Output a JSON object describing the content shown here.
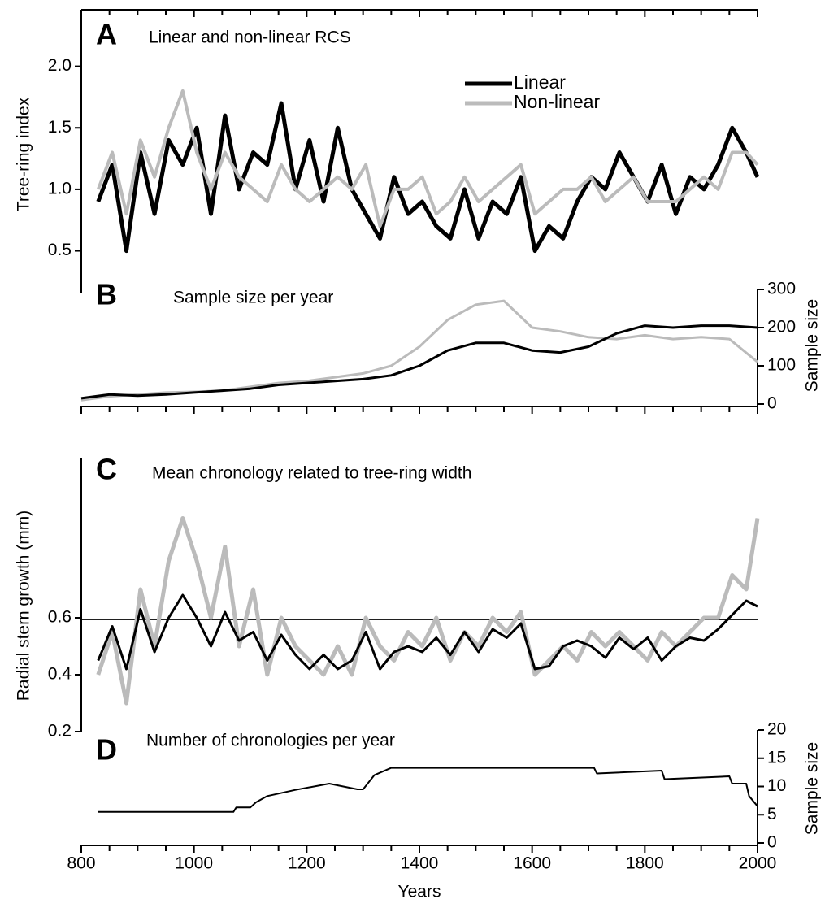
{
  "chart_data": [
    {
      "type": "line",
      "panel": "A",
      "title": "Linear and non-linear RCS",
      "ylabel": "Tree-ring index",
      "x": [
        830,
        855,
        880,
        905,
        930,
        955,
        980,
        1005,
        1030,
        1055,
        1080,
        1105,
        1130,
        1155,
        1180,
        1205,
        1230,
        1255,
        1280,
        1305,
        1330,
        1355,
        1380,
        1405,
        1430,
        1455,
        1480,
        1505,
        1530,
        1555,
        1580,
        1605,
        1630,
        1655,
        1680,
        1705,
        1730,
        1755,
        1780,
        1805,
        1830,
        1855,
        1880,
        1905,
        1930,
        1955,
        1980,
        2000
      ],
      "series": [
        {
          "name": "Linear",
          "color": "#000000",
          "values": [
            0.9,
            1.2,
            0.5,
            1.3,
            0.8,
            1.4,
            1.2,
            1.5,
            0.8,
            1.6,
            1.0,
            1.3,
            1.2,
            1.7,
            1.0,
            1.4,
            0.9,
            1.5,
            1.0,
            0.8,
            0.6,
            1.1,
            0.8,
            0.9,
            0.7,
            0.6,
            1.0,
            0.6,
            0.9,
            0.8,
            1.1,
            0.5,
            0.7,
            0.6,
            0.9,
            1.1,
            1.0,
            1.3,
            1.1,
            0.9,
            1.2,
            0.8,
            1.1,
            1.0,
            1.2,
            1.5,
            1.3,
            1.1
          ]
        },
        {
          "name": "Non-linear",
          "color": "#bbbbbb",
          "values": [
            1.0,
            1.3,
            0.8,
            1.4,
            1.1,
            1.5,
            1.8,
            1.3,
            1.0,
            1.3,
            1.1,
            1.0,
            0.9,
            1.2,
            1.0,
            0.9,
            1.0,
            1.1,
            1.0,
            1.2,
            0.7,
            1.0,
            1.0,
            1.1,
            0.8,
            0.9,
            1.1,
            0.9,
            1.0,
            1.1,
            1.2,
            0.8,
            0.9,
            1.0,
            1.0,
            1.1,
            0.9,
            1.0,
            1.1,
            0.9,
            0.9,
            0.9,
            1.0,
            1.1,
            1.0,
            1.3,
            1.3,
            1.2
          ]
        }
      ],
      "xlim": [
        800,
        2000
      ],
      "ylim": [
        0.16,
        2.46
      ],
      "yticks": [
        0.5,
        {
          "value": 1.0,
          "label": "1.0"
        },
        1.5,
        {
          "value": 2.0,
          "label": "2.0"
        }
      ]
    },
    {
      "type": "line",
      "panel": "B",
      "title": "Sample size per year",
      "y2label": "Sample size",
      "x": [
        800,
        850,
        900,
        950,
        1000,
        1050,
        1100,
        1150,
        1200,
        1250,
        1300,
        1350,
        1400,
        1450,
        1500,
        1550,
        1600,
        1650,
        1700,
        1750,
        1800,
        1850,
        1900,
        1950,
        2000
      ],
      "series": [
        {
          "color": "#bbbbbb",
          "axis": "y2",
          "values": [
            10,
            20,
            25,
            30,
            32,
            35,
            45,
            55,
            60,
            70,
            80,
            100,
            150,
            220,
            260,
            270,
            200,
            190,
            175,
            170,
            180,
            170,
            175,
            170,
            110
          ]
        },
        {
          "color": "#000000",
          "axis": "y2",
          "values": [
            15,
            25,
            22,
            25,
            30,
            35,
            40,
            50,
            55,
            60,
            65,
            75,
            100,
            140,
            160,
            160,
            140,
            135,
            150,
            185,
            205,
            200,
            205,
            205,
            200
          ]
        }
      ],
      "xlim": [
        800,
        2000
      ],
      "y2lim": [
        0,
        300
      ],
      "y2ticks": [
        0,
        100,
        200,
        300
      ]
    },
    {
      "type": "line",
      "panel": "C",
      "title": "Mean chronology related to tree-ring width",
      "ylabel": "Radial stem growth (mm)",
      "x": [
        830,
        855,
        880,
        905,
        930,
        955,
        980,
        1005,
        1030,
        1055,
        1080,
        1105,
        1130,
        1155,
        1180,
        1205,
        1230,
        1255,
        1280,
        1305,
        1330,
        1355,
        1380,
        1405,
        1430,
        1455,
        1480,
        1505,
        1530,
        1555,
        1580,
        1605,
        1630,
        1655,
        1680,
        1705,
        1730,
        1755,
        1780,
        1805,
        1830,
        1855,
        1880,
        1905,
        1930,
        1955,
        1980,
        2000
      ],
      "series": [
        {
          "color": "#bbbbbb",
          "values": [
            0.4,
            0.55,
            0.3,
            0.7,
            0.5,
            0.8,
            0.95,
            0.8,
            0.6,
            0.85,
            0.5,
            0.7,
            0.4,
            0.6,
            0.5,
            0.45,
            0.4,
            0.5,
            0.4,
            0.6,
            0.5,
            0.45,
            0.55,
            0.5,
            0.6,
            0.45,
            0.55,
            0.5,
            0.6,
            0.55,
            0.62,
            0.4,
            0.45,
            0.5,
            0.45,
            0.55,
            0.5,
            0.55,
            0.5,
            0.45,
            0.55,
            0.5,
            0.55,
            0.6,
            0.6,
            0.75,
            0.7,
            0.95
          ]
        },
        {
          "color": "#000000",
          "values": [
            0.45,
            0.57,
            0.42,
            0.63,
            0.48,
            0.6,
            0.68,
            0.6,
            0.5,
            0.62,
            0.52,
            0.55,
            0.45,
            0.54,
            0.47,
            0.42,
            0.47,
            0.42,
            0.45,
            0.55,
            0.42,
            0.48,
            0.5,
            0.48,
            0.53,
            0.47,
            0.55,
            0.48,
            0.56,
            0.53,
            0.58,
            0.42,
            0.43,
            0.5,
            0.52,
            0.5,
            0.46,
            0.53,
            0.49,
            0.53,
            0.45,
            0.5,
            0.53,
            0.52,
            0.56,
            0.61,
            0.66,
            0.64
          ]
        }
      ],
      "hline": 0.594,
      "xlim": [
        800,
        2000
      ],
      "ylim": [
        0.2,
        1.16
      ],
      "yticks": [
        0.2,
        0.4,
        0.6
      ]
    },
    {
      "type": "line",
      "panel": "D",
      "title": "Number of chronologies per year",
      "y2label": "Sample size",
      "xlabel": "Years",
      "x": [
        830,
        1070,
        1075,
        1100,
        1110,
        1130,
        1180,
        1240,
        1290,
        1300,
        1320,
        1350,
        1710,
        1715,
        1830,
        1835,
        1950,
        1955,
        1980,
        1985,
        2000
      ],
      "series": [
        {
          "color": "#000000",
          "axis": "y2",
          "values": [
            5.5,
            5.5,
            6.3,
            6.3,
            7.2,
            8.3,
            9.4,
            10.5,
            9.5,
            9.5,
            12,
            13.3,
            13.3,
            12.3,
            12.8,
            11.3,
            11.8,
            10.5,
            10.5,
            8.3,
            6.5
          ]
        }
      ],
      "xlim": [
        800,
        2000
      ],
      "y2lim": [
        0,
        20
      ],
      "y2ticks": [
        0,
        5,
        10,
        15,
        20
      ],
      "xticks": [
        800,
        1000,
        1200,
        1400,
        1600,
        1800,
        2000
      ],
      "xticks_minor": [
        850,
        900,
        950,
        1050,
        1100,
        1150,
        1250,
        1300,
        1350,
        1450,
        1500,
        1550,
        1650,
        1700,
        1750,
        1850,
        1900,
        1950
      ]
    }
  ]
}
